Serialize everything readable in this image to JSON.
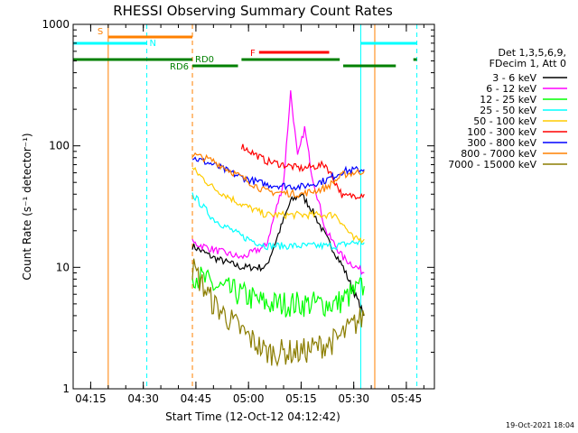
{
  "chart_data": {
    "type": "line",
    "title": "RHESSI Observing Summary Count Rates",
    "xlabel": "Start Time (12-Oct-12 04:12:42)",
    "ylabel": "Count Rate (s⁻¹ detector⁻¹)",
    "yscale": "log",
    "ylim": [
      1,
      1000
    ],
    "xlim": [
      "04:10",
      "05:53"
    ],
    "x_ticks": [
      "04:15",
      "04:30",
      "04:45",
      "05:00",
      "05:15",
      "05:30",
      "05:45"
    ],
    "y_ticks": [
      "1",
      "10",
      "100",
      "1000"
    ],
    "grid": false,
    "legend_position": "right",
    "legend_header": [
      "Det 1,3,5,6,9,",
      "FDecim 1, Att 0"
    ],
    "series": [
      {
        "name": "3 - 6 keV",
        "color": "#000000",
        "x": [
          "04:44",
          "04:50",
          "04:58",
          "05:05",
          "05:12",
          "05:15",
          "05:18",
          "05:22",
          "05:27",
          "05:33"
        ],
        "y": [
          15,
          12,
          10,
          10,
          35,
          40,
          30,
          18,
          10,
          4
        ]
      },
      {
        "name": "6 - 12 keV",
        "color": "#ff00ff",
        "x": [
          "04:44",
          "04:50",
          "04:58",
          "05:05",
          "05:10",
          "05:12",
          "05:14",
          "05:16",
          "05:18",
          "05:22",
          "05:27",
          "05:33"
        ],
        "y": [
          16,
          14,
          12,
          15,
          50,
          280,
          80,
          140,
          60,
          20,
          12,
          9
        ]
      },
      {
        "name": "12 - 25 keV",
        "color": "#00ff00",
        "x": [
          "04:44",
          "04:50",
          "04:58",
          "05:05",
          "05:15",
          "05:25",
          "05:33"
        ],
        "y": [
          9,
          7,
          6,
          5,
          5,
          5,
          7
        ]
      },
      {
        "name": "25 - 50 keV",
        "color": "#00ffff",
        "x": [
          "04:44",
          "04:50",
          "04:58",
          "05:05",
          "05:15",
          "05:25",
          "05:30",
          "05:33"
        ],
        "y": [
          40,
          25,
          18,
          15,
          15,
          15,
          16,
          16
        ]
      },
      {
        "name": "50 - 100 keV",
        "color": "#ffcc00",
        "x": [
          "04:44",
          "04:50",
          "04:58",
          "05:05",
          "05:15",
          "05:25",
          "05:30",
          "05:33"
        ],
        "y": [
          65,
          45,
          33,
          27,
          27,
          27,
          17,
          17
        ]
      },
      {
        "name": "100 - 300 keV",
        "color": "#ff0000",
        "x": [
          "04:58",
          "05:05",
          "05:15",
          "05:22",
          "05:27",
          "05:33"
        ],
        "y": [
          100,
          75,
          65,
          70,
          38,
          40
        ]
      },
      {
        "name": "300 - 800 keV",
        "color": "#0000ff",
        "x": [
          "04:44",
          "04:50",
          "04:58",
          "05:05",
          "05:15",
          "05:22",
          "05:27",
          "05:30",
          "05:33"
        ],
        "y": [
          80,
          70,
          55,
          48,
          46,
          52,
          62,
          63,
          64
        ]
      },
      {
        "name": "800 - 7000 keV",
        "color": "#ff8000",
        "x": [
          "04:44",
          "04:50",
          "04:58",
          "05:05",
          "05:15",
          "05:22",
          "05:27",
          "05:30",
          "05:33"
        ],
        "y": [
          85,
          75,
          55,
          42,
          40,
          45,
          58,
          60,
          62
        ]
      },
      {
        "name": "7000 - 15000 keV",
        "color": "#8b7d00",
        "x": [
          "04:44",
          "04:50",
          "04:58",
          "05:05",
          "05:15",
          "05:25",
          "05:33"
        ],
        "y": [
          10,
          5,
          3,
          2,
          2,
          2.5,
          4
        ]
      }
    ],
    "flag_bars": [
      {
        "label": "S",
        "color": "#ff8000",
        "segments": [
          [
            "04:20",
            "04:44"
          ]
        ]
      },
      {
        "label": "N",
        "color": "#00ffff",
        "segments": [
          [
            "04:10",
            "04:31"
          ],
          [
            "05:32",
            "05:48"
          ]
        ]
      },
      {
        "label": "F",
        "color": "#ff0000",
        "segments": [
          [
            "05:03",
            "05:23"
          ]
        ]
      },
      {
        "label": "RD0",
        "color": "#008000",
        "segments": [
          [
            "04:10",
            "04:44"
          ],
          [
            "04:58",
            "05:26"
          ],
          [
            "05:47",
            "05:48"
          ]
        ]
      },
      {
        "label": "RD6",
        "color": "#008000",
        "segments": [
          [
            "04:44",
            "04:57"
          ],
          [
            "05:27",
            "05:42"
          ]
        ]
      }
    ],
    "vertical_markers": [
      {
        "x": "04:20",
        "color": "#ff8000",
        "style": "solid"
      },
      {
        "x": "04:31",
        "color": "#00ffff",
        "style": "dashed"
      },
      {
        "x": "04:44",
        "color": "#ff8000",
        "style": "dashed"
      },
      {
        "x": "05:32",
        "color": "#00ffff",
        "style": "solid"
      },
      {
        "x": "05:36",
        "color": "#ff8000",
        "style": "solid"
      },
      {
        "x": "05:48",
        "color": "#00ffff",
        "style": "dashed"
      }
    ],
    "timestamp": "19-Oct-2021 18:04"
  }
}
